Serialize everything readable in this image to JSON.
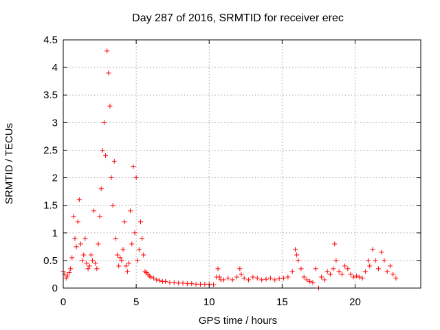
{
  "chart_data": {
    "type": "scatter",
    "title": "Day 287 of 2016, SRMTID for receiver erec",
    "xlabel": "GPS time / hours",
    "ylabel": "SRMTID / TECUs",
    "xlim": [
      0,
      24.5
    ],
    "ylim": [
      0,
      4.5
    ],
    "x_ticks": [
      0,
      5,
      10,
      15,
      20
    ],
    "y_ticks": [
      0,
      0.5,
      1,
      1.5,
      2,
      2.5,
      3,
      3.5,
      4,
      4.5
    ],
    "x_tick_labels": [
      "0",
      "5",
      "10",
      "15",
      "20"
    ],
    "y_tick_labels": [
      "0",
      "0.5",
      "1",
      "1.5",
      "2",
      "2.5",
      "3",
      "3.5",
      "4",
      "4.5"
    ],
    "grid": true,
    "marker": "plus",
    "series": [
      {
        "name": "SRMTID",
        "color": "#ff0000",
        "x": [
          0.0,
          0.1,
          0.2,
          0.3,
          0.4,
          0.5,
          0.6,
          0.7,
          0.8,
          0.9,
          1.0,
          1.1,
          1.2,
          1.3,
          1.4,
          1.5,
          1.6,
          1.7,
          1.8,
          1.9,
          2.0,
          2.1,
          2.2,
          2.3,
          2.4,
          2.5,
          2.6,
          2.7,
          2.8,
          2.9,
          3.0,
          3.1,
          3.2,
          3.3,
          3.4,
          3.5,
          3.6,
          3.7,
          3.8,
          3.9,
          4.0,
          4.1,
          4.2,
          4.3,
          4.4,
          4.5,
          4.6,
          4.7,
          4.8,
          4.9,
          5.0,
          5.1,
          5.2,
          5.3,
          5.4,
          5.5,
          5.6,
          5.7,
          5.8,
          5.9,
          6.0,
          6.2,
          6.4,
          6.6,
          6.8,
          7.0,
          7.3,
          7.6,
          7.9,
          8.2,
          8.5,
          8.8,
          9.1,
          9.4,
          9.7,
          10.0,
          10.3,
          10.5,
          10.6,
          10.7,
          10.8,
          11.0,
          11.3,
          11.6,
          11.9,
          12.1,
          12.2,
          12.4,
          12.7,
          13.0,
          13.3,
          13.6,
          13.9,
          14.2,
          14.5,
          14.8,
          15.1,
          15.4,
          15.7,
          15.9,
          16.0,
          16.1,
          16.3,
          16.5,
          16.7,
          16.9,
          17.1,
          17.3,
          17.5,
          17.7,
          17.9,
          18.1,
          18.3,
          18.5,
          18.6,
          18.7,
          18.9,
          19.1,
          19.3,
          19.5,
          19.7,
          19.9,
          20.1,
          20.3,
          20.5,
          20.7,
          20.9,
          21.0,
          21.2,
          21.4,
          21.6,
          21.8,
          22.0,
          22.2,
          22.4,
          22.6,
          22.8
        ],
        "y": [
          0.3,
          0.25,
          0.18,
          0.22,
          0.28,
          0.35,
          0.55,
          1.3,
          0.9,
          0.75,
          1.2,
          1.6,
          0.8,
          0.5,
          0.6,
          0.9,
          0.45,
          0.35,
          0.4,
          0.6,
          0.5,
          1.4,
          0.45,
          0.35,
          0.8,
          1.3,
          1.8,
          2.5,
          3.0,
          2.4,
          4.3,
          3.9,
          3.3,
          2.0,
          1.5,
          2.3,
          0.9,
          0.6,
          0.4,
          0.55,
          0.5,
          0.7,
          1.2,
          0.4,
          0.3,
          0.45,
          1.4,
          0.8,
          2.2,
          1.0,
          2.0,
          0.5,
          0.7,
          1.2,
          0.9,
          0.6,
          0.3,
          0.28,
          0.25,
          0.22,
          0.2,
          0.18,
          0.15,
          0.14,
          0.12,
          0.12,
          0.1,
          0.1,
          0.09,
          0.09,
          0.08,
          0.08,
          0.07,
          0.07,
          0.07,
          0.07,
          0.06,
          0.2,
          0.35,
          0.2,
          0.15,
          0.15,
          0.18,
          0.15,
          0.2,
          0.35,
          0.25,
          0.18,
          0.15,
          0.2,
          0.18,
          0.15,
          0.16,
          0.18,
          0.15,
          0.17,
          0.18,
          0.2,
          0.3,
          0.7,
          0.6,
          0.5,
          0.35,
          0.2,
          0.15,
          0.12,
          0.1,
          0.35,
          0.0,
          0.2,
          0.15,
          0.3,
          0.25,
          0.35,
          0.8,
          0.5,
          0.3,
          0.25,
          0.4,
          0.35,
          0.25,
          0.2,
          0.22,
          0.2,
          0.18,
          0.3,
          0.5,
          0.4,
          0.7,
          0.5,
          0.35,
          0.65,
          0.5,
          0.3,
          0.4,
          0.25,
          0.18
        ]
      }
    ]
  }
}
